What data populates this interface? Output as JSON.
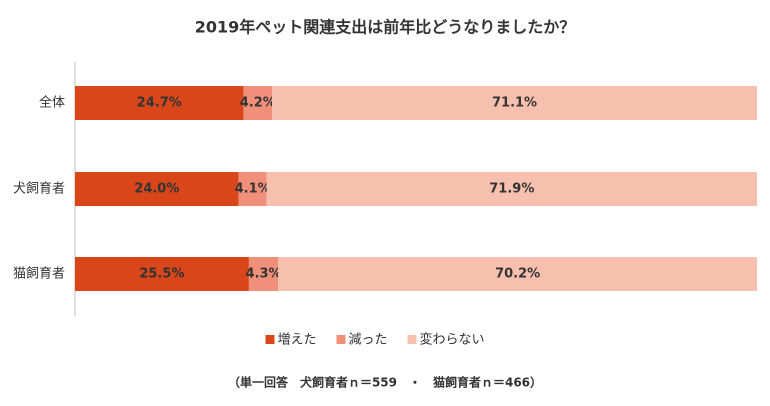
{
  "chart_data": {
    "type": "stacked-bar-horizontal",
    "title": "2019年ペット関連支出は前年比どうなりましたか？",
    "categories": [
      "全体",
      "犬飼育者",
      "猫飼育者"
    ],
    "series": [
      {
        "name": "増えた",
        "color": "#d9461a",
        "values": [
          24.7,
          24.0,
          25.5
        ],
        "value_labels": [
          "24.7%",
          "24.0%",
          "25.5%"
        ]
      },
      {
        "name": "減った",
        "color": "#f0907a",
        "values": [
          4.2,
          4.1,
          4.3
        ],
        "value_labels": [
          "4.2%",
          "4.1%",
          "4.3%"
        ]
      },
      {
        "name": "変わらない",
        "color": "#f7c0ae",
        "values": [
          71.1,
          71.9,
          70.2
        ],
        "value_labels": [
          "71.1%",
          "71.9%",
          "70.2%"
        ]
      }
    ],
    "xlim": [
      0,
      100
    ],
    "legend": "bottom",
    "note": "（単一回答　犬飼育者ｎ＝559　・　猫飼育者ｎ＝466）"
  }
}
